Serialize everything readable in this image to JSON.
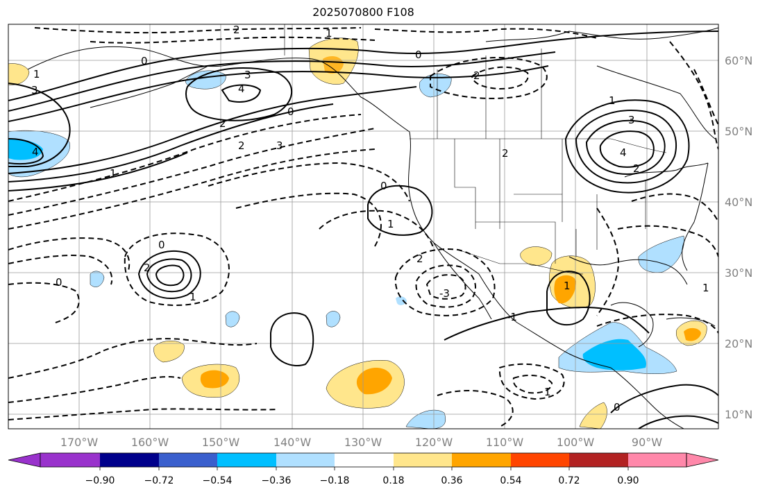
{
  "title": "2025070800 F108",
  "longitude_labels": [
    "170°W",
    "160°W",
    "150°W",
    "140°W",
    "130°W",
    "120°W",
    "110°W",
    "100°W",
    "90°W"
  ],
  "latitude_labels": [
    "60°N",
    "50°N",
    "40°N",
    "30°N",
    "20°N",
    "10°N"
  ],
  "colorbar": {
    "tick_labels": [
      "−0.90",
      "−0.72",
      "−0.54",
      "−0.36",
      "−0.18",
      "0.18",
      "0.36",
      "0.54",
      "0.72",
      "0.90"
    ],
    "colors": [
      "#9932cc",
      "#00008b",
      "#3a5fcd",
      "#00bfff",
      "#b0e0ff",
      "#ffffff",
      "#ffe68c",
      "#ffa500",
      "#ff4500",
      "#b22222",
      "#ff88aa"
    ]
  },
  "contour_labels": [
    "0",
    "1",
    "2",
    "3",
    "4",
    "2",
    "3",
    "4",
    "0",
    "1",
    "2",
    "3",
    "0",
    "1",
    "2",
    "1",
    "0",
    "2",
    "1",
    "0",
    "1",
    "2",
    "3",
    "4",
    "2",
    "0",
    "1",
    "2",
    "1",
    "0",
    "-3",
    "-1",
    "1"
  ],
  "fill_colors": {
    "light_blue": "#b0e0ff",
    "blue": "#00bfff",
    "light_yellow": "#ffe68c",
    "orange": "#ffa500"
  }
}
